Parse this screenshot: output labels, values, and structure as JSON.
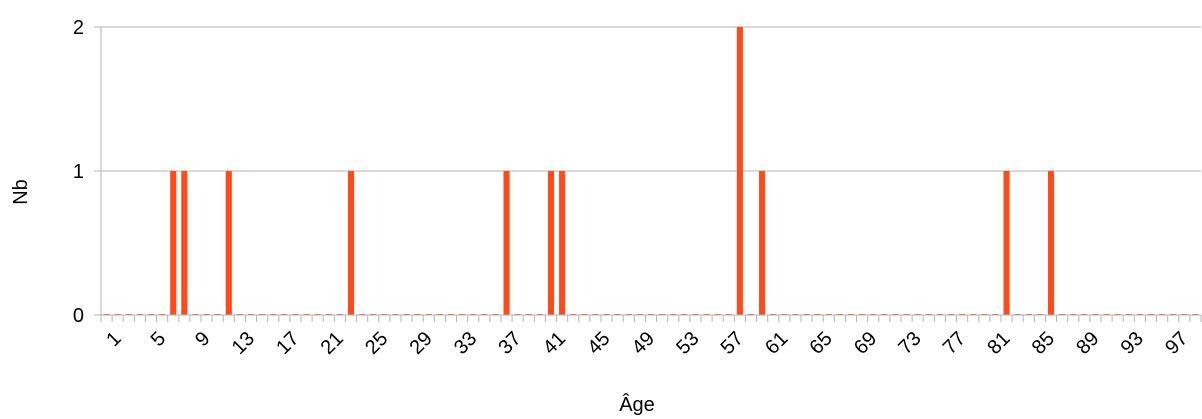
{
  "chart_data": {
    "type": "bar",
    "title": "",
    "xlabel": "Âge",
    "ylabel": "Nb",
    "ylim": [
      0,
      2
    ],
    "y_ticks": [
      "0",
      "1",
      "2"
    ],
    "x_range": [
      1,
      99
    ],
    "x_tick_labels": [
      "1",
      "5",
      "9",
      "13",
      "17",
      "21",
      "25",
      "29",
      "33",
      "37",
      "41",
      "45",
      "49",
      "53",
      "57",
      "61",
      "65",
      "69",
      "73",
      "77",
      "81",
      "85",
      "89",
      "93",
      "97"
    ],
    "grid": "horizontal",
    "bar_color": "#ff4a1a",
    "nonzero_values": [
      {
        "x": 7,
        "y": 1
      },
      {
        "x": 8,
        "y": 1
      },
      {
        "x": 12,
        "y": 1
      },
      {
        "x": 23,
        "y": 1
      },
      {
        "x": 37,
        "y": 1
      },
      {
        "x": 41,
        "y": 1
      },
      {
        "x": 42,
        "y": 1
      },
      {
        "x": 58,
        "y": 2
      },
      {
        "x": 60,
        "y": 1
      },
      {
        "x": 82,
        "y": 1
      },
      {
        "x": 86,
        "y": 1
      }
    ],
    "other_values": 0
  }
}
